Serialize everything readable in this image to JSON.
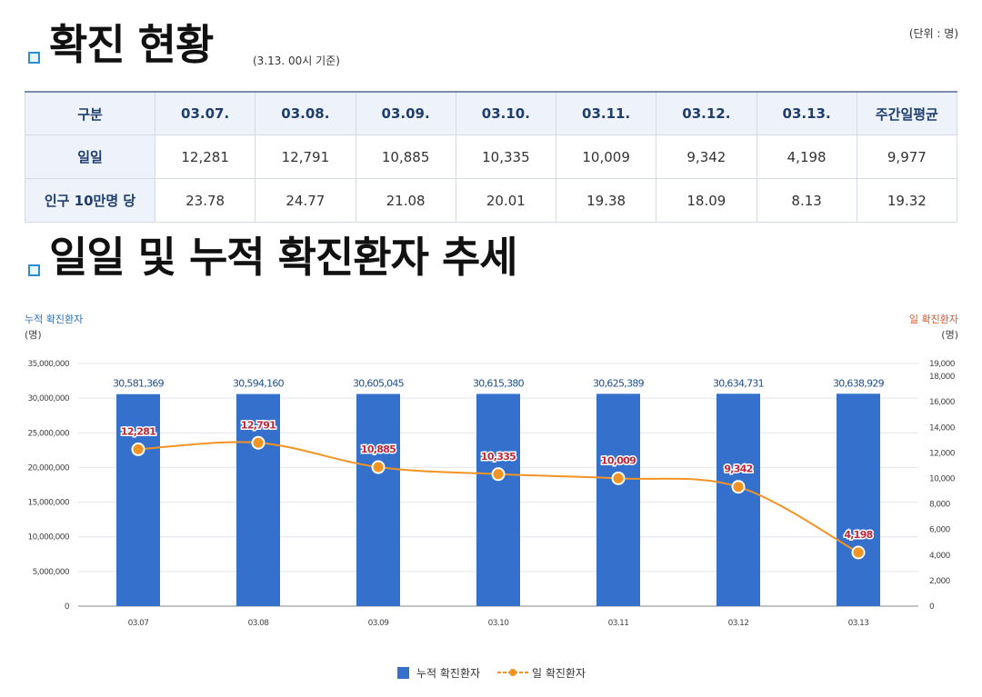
{
  "summary": {
    "title": "확진 현황",
    "basis": "(3.13. 00시 기준)",
    "unit": "(단위 : 명)",
    "header": [
      "구분",
      "03.07.",
      "03.08.",
      "03.09.",
      "03.10.",
      "03.11.",
      "03.12.",
      "03.13.",
      "주간일평균"
    ],
    "rows": [
      {
        "label": "일일",
        "values": [
          "12,281",
          "12,791",
          "10,885",
          "10,335",
          "10,009",
          "9,342",
          "4,198",
          "9,977"
        ]
      },
      {
        "label": "인구 10만명 당",
        "values": [
          "23.78",
          "24.77",
          "21.08",
          "20.01",
          "19.38",
          "18.09",
          "8.13",
          "19.32"
        ]
      }
    ]
  },
  "trend": {
    "title": "일일 및 누적 확진환자 추세",
    "left_axis_title": "누적 확진환자",
    "left_axis_unit": "(명)",
    "right_axis_title": "일 확진환자",
    "right_axis_unit": "(명)"
  },
  "colors": {
    "bar": "#3470cc",
    "line": "#f29323",
    "label_red": "#c0283a",
    "label_blue": "#1f4e8f",
    "icon": "#2a8fd0"
  },
  "chart_data": {
    "type": "bar",
    "categories": [
      "03.07",
      "03.08",
      "03.09",
      "03.10",
      "03.11",
      "03.12",
      "03.13"
    ],
    "series": [
      {
        "name": "누적 확진환자",
        "kind": "bar",
        "axis": "left",
        "values": [
          30581369,
          30594160,
          30605045,
          30615380,
          30625389,
          30634731,
          30638929
        ],
        "labels": [
          "30,581,369",
          "30,594,160",
          "30,605,045",
          "30,615,380",
          "30,625,389",
          "30,634,731",
          "30,638,929"
        ]
      },
      {
        "name": "일 확진환자",
        "kind": "line",
        "axis": "right",
        "values": [
          12281,
          12791,
          10885,
          10335,
          10009,
          9342,
          4198
        ],
        "labels": [
          "12,281",
          "12,791",
          "10,885",
          "10,335",
          "10,009",
          "9,342",
          "4,198"
        ]
      }
    ],
    "ylim_left": [
      0,
      35000000
    ],
    "yticks_left": [
      "0",
      "5,000,000",
      "10,000,000",
      "15,000,000",
      "20,000,000",
      "25,000,000",
      "30,000,000",
      "35,000,000"
    ],
    "ylim_right": [
      0,
      19000
    ],
    "yticks_right": [
      "0",
      "2,000",
      "4,000",
      "6,000",
      "8,000",
      "10,000",
      "12,000",
      "14,000",
      "16,000",
      "18,000",
      "19,000"
    ],
    "legend": [
      "누적 확진환자",
      "일 확진환자"
    ],
    "legend_position": "bottom-center"
  }
}
